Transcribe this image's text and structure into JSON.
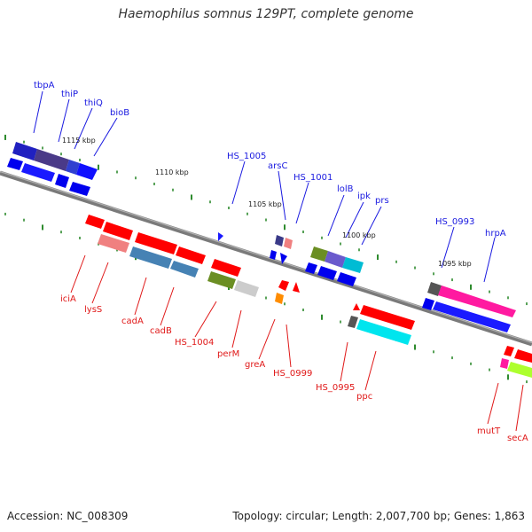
{
  "title": "Haemophilus somnus 129PT, complete genome",
  "footer": {
    "accession": "Accession: NC_008309",
    "summary": "Topology: circular; Length: 2,007,700 bp; Genes: 1,863"
  },
  "colors": {
    "top_label": "#1a1ae0",
    "bottom_label": "#e01818",
    "backbone": "#777777",
    "tick_dash": "#2e8b2e"
  },
  "ticks": [
    {
      "label": "1115 kbp"
    },
    {
      "label": "1110 kbp"
    },
    {
      "label": "1105 kbp"
    },
    {
      "label": "1100 kbp"
    },
    {
      "label": "1095 kbp"
    }
  ],
  "genes_top": [
    {
      "name": "tbpA"
    },
    {
      "name": "thiP"
    },
    {
      "name": "thiQ"
    },
    {
      "name": "bioB"
    },
    {
      "name": "HS_1005"
    },
    {
      "name": "arsC"
    },
    {
      "name": "HS_1001"
    },
    {
      "name": "lolB"
    },
    {
      "name": "ipk"
    },
    {
      "name": "prs"
    },
    {
      "name": "HS_0993"
    },
    {
      "name": "hrpA"
    }
  ],
  "genes_bottom": [
    {
      "name": "iciA"
    },
    {
      "name": "lysS"
    },
    {
      "name": "cadA"
    },
    {
      "name": "cadB"
    },
    {
      "name": "HS_1004"
    },
    {
      "name": "perM"
    },
    {
      "name": "greA"
    },
    {
      "name": "HS_0999"
    },
    {
      "name": "HS_0995"
    },
    {
      "name": "ppc"
    },
    {
      "name": "mutT"
    },
    {
      "name": "secA"
    }
  ]
}
